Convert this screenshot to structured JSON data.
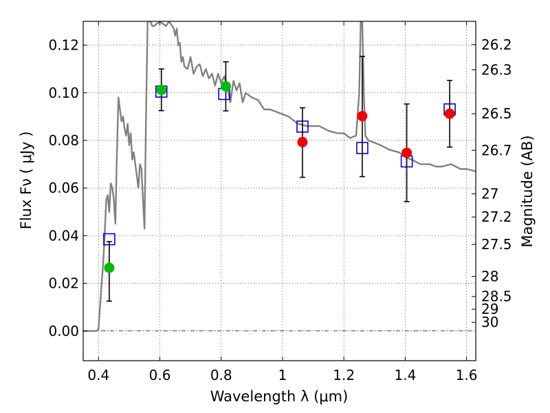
{
  "chart_data": {
    "type": "scatter",
    "xlabel": "Wavelength  λ (μm)",
    "ylabel": "Flux  Fν ( μJy )",
    "ylabel2": "Magnitude (AB)",
    "xlim": [
      0.35,
      1.63
    ],
    "ylim": [
      -0.0125,
      0.13
    ],
    "xticks": [
      0.4,
      0.6,
      0.8,
      1.0,
      1.2,
      1.4,
      1.6
    ],
    "xtick_labels": [
      "0.4",
      "0.6",
      "0.8",
      "1",
      "1.2",
      "1.4",
      "1.6"
    ],
    "yticks": [
      0.0,
      0.02,
      0.04,
      0.06,
      0.08,
      0.1,
      0.12
    ],
    "ytick_labels": [
      "0.00",
      "0.02",
      "0.04",
      "0.06",
      "0.08",
      "0.10",
      "0.12"
    ],
    "magnitude_ticks": [
      "26.2",
      "26.3",
      "26.5",
      "26.7",
      "27",
      "27.2",
      "27.5",
      "28",
      "28.5",
      "29",
      "30"
    ],
    "grid": true,
    "zero_line": true,
    "colors": {
      "model": "#808080",
      "model_points": "#0000cc",
      "green_points": "#00bb00",
      "red_points": "#ee0000",
      "errorbars": "#000000"
    },
    "model_sed": {
      "x": [
        0.35,
        0.395,
        0.4,
        0.405,
        0.41,
        0.415,
        0.42,
        0.425,
        0.43,
        0.435,
        0.44,
        0.445,
        0.45,
        0.455,
        0.46,
        0.465,
        0.47,
        0.475,
        0.48,
        0.485,
        0.49,
        0.495,
        0.5,
        0.505,
        0.51,
        0.515,
        0.52,
        0.525,
        0.53,
        0.535,
        0.54,
        0.545,
        0.55,
        0.555,
        0.56,
        0.565,
        0.57,
        0.575,
        0.58,
        0.59,
        0.6,
        0.61,
        0.62,
        0.63,
        0.64,
        0.645,
        0.65,
        0.655,
        0.66,
        0.665,
        0.67,
        0.675,
        0.68,
        0.69,
        0.7,
        0.71,
        0.72,
        0.73,
        0.74,
        0.75,
        0.76,
        0.77,
        0.78,
        0.79,
        0.8,
        0.81,
        0.82,
        0.83,
        0.84,
        0.85,
        0.86,
        0.87,
        0.88,
        0.9,
        0.92,
        0.94,
        0.96,
        0.98,
        1.0,
        1.02,
        1.05,
        1.08,
        1.1,
        1.12,
        1.15,
        1.18,
        1.2,
        1.22,
        1.24,
        1.25,
        1.255,
        1.26,
        1.265,
        1.27,
        1.28,
        1.3,
        1.32,
        1.35,
        1.38,
        1.4,
        1.42,
        1.45,
        1.48,
        1.5,
        1.52,
        1.55,
        1.58,
        1.6,
        1.63
      ],
      "y": [
        0.0,
        0.0,
        0.001,
        0.01,
        0.02,
        0.028,
        0.04,
        0.055,
        0.057,
        0.05,
        0.062,
        0.06,
        0.055,
        0.045,
        0.075,
        0.098,
        0.093,
        0.088,
        0.09,
        0.085,
        0.082,
        0.087,
        0.078,
        0.083,
        0.072,
        0.075,
        0.07,
        0.065,
        0.06,
        0.07,
        0.068,
        0.055,
        0.043,
        0.09,
        0.13,
        0.13,
        0.13,
        0.128,
        0.128,
        0.129,
        0.13,
        0.129,
        0.128,
        0.13,
        0.128,
        0.127,
        0.124,
        0.127,
        0.12,
        0.121,
        0.113,
        0.115,
        0.111,
        0.11,
        0.115,
        0.108,
        0.111,
        0.112,
        0.107,
        0.11,
        0.106,
        0.108,
        0.103,
        0.108,
        0.104,
        0.107,
        0.102,
        0.096,
        0.105,
        0.101,
        0.104,
        0.096,
        0.1,
        0.098,
        0.097,
        0.093,
        0.093,
        0.092,
        0.091,
        0.09,
        0.087,
        0.086,
        0.086,
        0.086,
        0.084,
        0.083,
        0.083,
        0.081,
        0.082,
        0.1,
        0.13,
        0.13,
        0.1,
        0.082,
        0.08,
        0.079,
        0.078,
        0.076,
        0.075,
        0.073,
        0.072,
        0.07,
        0.07,
        0.069,
        0.069,
        0.07,
        0.068,
        0.068,
        0.067
      ]
    },
    "model_points": {
      "x": [
        0.435,
        0.605,
        0.81,
        1.065,
        1.26,
        1.405,
        1.545
      ],
      "y": [
        0.0385,
        0.1005,
        0.0995,
        0.0858,
        0.0768,
        0.0712,
        0.093
      ]
    },
    "observations": [
      {
        "x": 0.435,
        "y": 0.0265,
        "err_low": 0.0125,
        "err_high": 0.0375,
        "color": "green"
      },
      {
        "x": 0.605,
        "y": 0.1012,
        "err_low": 0.0925,
        "err_high": 0.11,
        "color": "green"
      },
      {
        "x": 0.815,
        "y": 0.1027,
        "err_low": 0.0924,
        "err_high": 0.113,
        "color": "green"
      },
      {
        "x": 1.065,
        "y": 0.0793,
        "err_low": 0.0645,
        "err_high": 0.0937,
        "color": "red"
      },
      {
        "x": 1.26,
        "y": 0.0902,
        "err_low": 0.0648,
        "err_high": 0.1153,
        "color": "red"
      },
      {
        "x": 1.405,
        "y": 0.0748,
        "err_low": 0.0543,
        "err_high": 0.0953,
        "color": "red"
      },
      {
        "x": 1.545,
        "y": 0.0912,
        "err_low": 0.0772,
        "err_high": 0.1052,
        "color": "red"
      }
    ]
  }
}
